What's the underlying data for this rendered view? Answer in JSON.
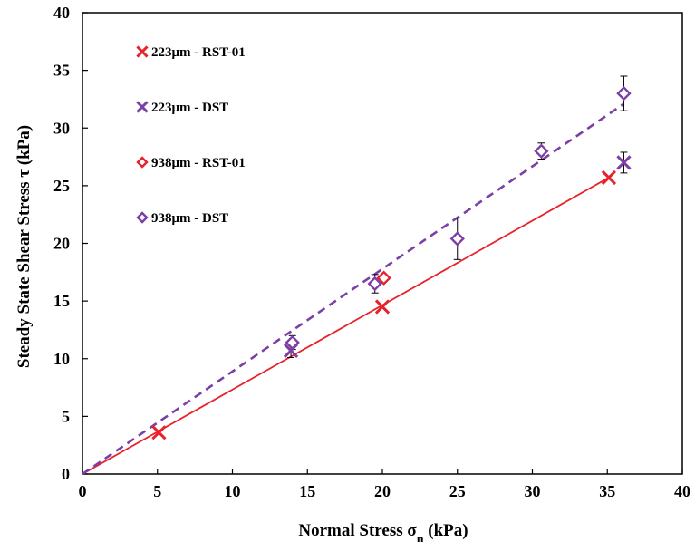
{
  "chart_data": {
    "type": "scatter",
    "title": "",
    "xlabel": "Normal Stress σ",
    "xlabel_subscript": "n",
    "xlabel_unit": " (kPa)",
    "ylabel": "Steady State Shear Stress τ (kPa)",
    "xlim": [
      0,
      40
    ],
    "ylim": [
      0,
      40
    ],
    "x_ticks": [
      "0",
      "5",
      "10",
      "15",
      "20",
      "25",
      "30",
      "35",
      "40"
    ],
    "y_ticks": [
      "0",
      "5",
      "10",
      "15",
      "20",
      "25",
      "30",
      "35",
      "40"
    ],
    "grid": false,
    "legend_position": "top-left",
    "series": [
      {
        "name": "223μm - RST-01",
        "marker": "x",
        "color": "#e8222a",
        "points": [
          {
            "x": 5.1,
            "y": 3.6
          },
          {
            "x": 20.0,
            "y": 14.5
          },
          {
            "x": 35.1,
            "y": 25.7
          }
        ]
      },
      {
        "name": "223μm - DST",
        "marker": "x",
        "color": "#7b3fa6",
        "points": [
          {
            "x": 13.9,
            "y": 10.7,
            "err": 0.6
          },
          {
            "x": 36.1,
            "y": 27.0,
            "err": 0.9
          }
        ]
      },
      {
        "name": "938μm - RST-01",
        "marker": "diamond",
        "color": "#e8222a",
        "points": [
          {
            "x": 20.1,
            "y": 17.0
          }
        ]
      },
      {
        "name": "938μm - DST",
        "marker": "diamond",
        "color": "#7b3fa6",
        "points": [
          {
            "x": 14.0,
            "y": 11.4,
            "err": 0.6
          },
          {
            "x": 19.5,
            "y": 16.5,
            "err": 0.8
          },
          {
            "x": 25.0,
            "y": 20.4,
            "err": 1.8
          },
          {
            "x": 30.6,
            "y": 28.0,
            "err": 0.7
          },
          {
            "x": 36.1,
            "y": 33.0,
            "err": 1.5
          }
        ]
      }
    ],
    "trendlines": [
      {
        "style": "solid",
        "color": "#e8222a",
        "x": [
          0,
          35.1
        ],
        "y": [
          0,
          25.7
        ]
      },
      {
        "style": "dashed",
        "color": "#7b3fa6",
        "x": [
          0,
          36.1
        ],
        "y": [
          0,
          32.1
        ]
      }
    ]
  }
}
